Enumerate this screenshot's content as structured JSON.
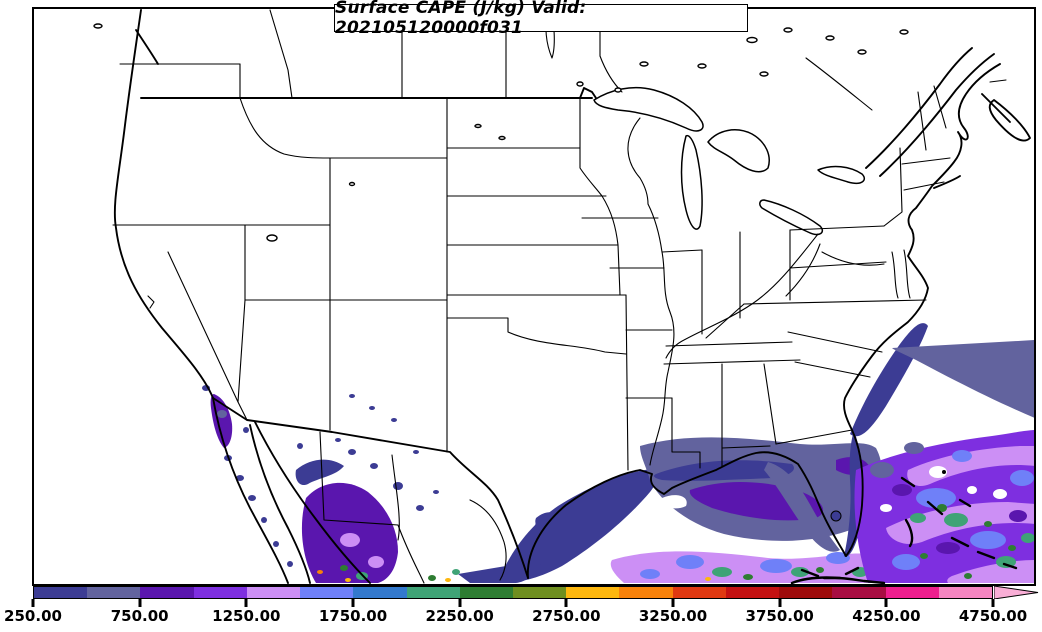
{
  "header": {
    "title": "Surface CAPE (J/kg) Valid: 202105120000f031"
  },
  "colorbar": {
    "tick_labels": [
      "250.00",
      "750.00",
      "1250.00",
      "1750.00",
      "2250.00",
      "2750.00",
      "3250.00",
      "3750.00",
      "4250.00",
      "4750.00"
    ],
    "segment_colors": [
      "#3c3c94",
      "#62639e",
      "#5a16ae",
      "#7e2fe0",
      "#cc8ff5",
      "#6f80f8",
      "#3379cd",
      "#3fa376",
      "#2e7d32",
      "#6f8f1f",
      "#fdb70e",
      "#f8820a",
      "#e03911",
      "#c41111",
      "#9e0b0b",
      "#a80d42",
      "#ee1e8e",
      "#f585c1"
    ],
    "overflow_color": "#f9aed6"
  },
  "chart_data": {
    "type": "heatmap",
    "subtype": "filled-contour-weather-map",
    "title": "Surface CAPE (J/kg) Valid: 202105120000f031",
    "variable": "Surface CAPE",
    "units": "J/kg",
    "valid_time": "202105120000f031",
    "map_extent": "CONUS with southern Canada, Mexico, Gulf of Mexico, Bahamas and western Atlantic",
    "legend_position": "bottom",
    "contour_levels": [
      250,
      500,
      750,
      1000,
      1250,
      1500,
      1750,
      2000,
      2250,
      2500,
      2750,
      3000,
      3250,
      3500,
      3750,
      4000,
      4250,
      4500,
      4750
    ],
    "colorbar_tick_values": [
      250,
      750,
      1250,
      1750,
      2250,
      2750,
      3250,
      3750,
      4250,
      4750
    ],
    "colorbar_colors": [
      "#3c3c94",
      "#62639e",
      "#5a16ae",
      "#7e2fe0",
      "#cc8ff5",
      "#6f80f8",
      "#3379cd",
      "#3fa376",
      "#2e7d32",
      "#6f8f1f",
      "#fdb70e",
      "#f8820a",
      "#e03911",
      "#c41111",
      "#9e0b0b",
      "#a80d42",
      "#ee1e8e",
      "#f585c1",
      "#f9aed6"
    ],
    "shaded_regions": [
      {
        "area": "Texas coastal waters and western Gulf of Mexico",
        "approx_range_jkg": "250-750"
      },
      {
        "area": "Eastern and southern Gulf of Mexico",
        "approx_range_jkg": "250-2750"
      },
      {
        "area": "Florida coastal waters and Keys",
        "approx_range_jkg": "250-2250"
      },
      {
        "area": "Southwest Atlantic / Bahamas (heaviest shading)",
        "approx_range_jkg": "250-2500"
      },
      {
        "area": "Western Mexico / southern Gulf of California",
        "approx_range_jkg": "250-3000"
      },
      {
        "area": "Northern Baja California border region",
        "approx_range_jkg": "250-1000"
      },
      {
        "area": "Scattered specks over NM, AZ and interior Mexico",
        "approx_range_jkg": "250-500"
      }
    ],
    "land_shading": "none over most of CONUS (values below 250 J/kg unshaded)"
  }
}
